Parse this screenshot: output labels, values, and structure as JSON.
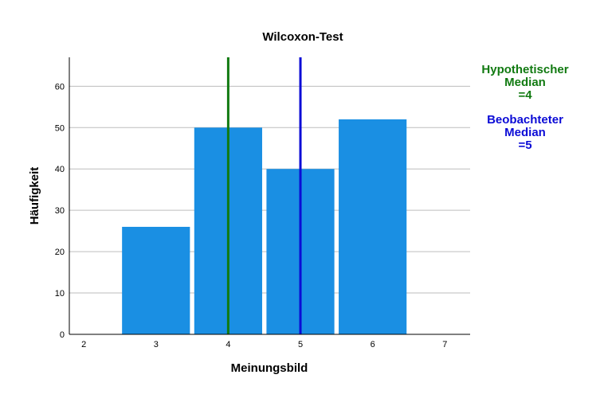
{
  "chart_data": {
    "type": "bar",
    "title": "Wilcoxon-Test",
    "xlabel": "Meinungsbild",
    "ylabel": "Häufigkeit",
    "x_ticks": [
      "2",
      "3",
      "4",
      "5",
      "6",
      "7"
    ],
    "xlim": [
      1.8,
      7.35
    ],
    "ylim": [
      0,
      67
    ],
    "y_ticks": [
      0,
      10,
      20,
      30,
      40,
      50,
      60
    ],
    "grid": true,
    "bar_color": "#1a8fe3",
    "bars": [
      {
        "x": 3,
        "value": 26
      },
      {
        "x": 4,
        "value": 50
      },
      {
        "x": 5,
        "value": 40
      },
      {
        "x": 6,
        "value": 52
      }
    ],
    "reference_lines": [
      {
        "x": 4,
        "color": "#117a11",
        "label_lines": [
          "Hypothetischer",
          "Median",
          "=4"
        ]
      },
      {
        "x": 5,
        "color": "#0b0bd6",
        "label_lines": [
          "Beobachteter",
          "Median",
          "=5"
        ]
      }
    ]
  }
}
